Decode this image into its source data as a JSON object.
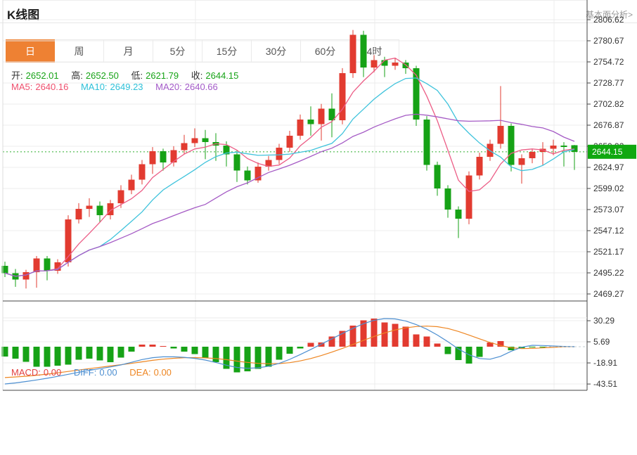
{
  "header": {
    "title": "K线图",
    "link": "基本面分析>"
  },
  "tabs": {
    "items": [
      "日",
      "周",
      "月",
      "5分",
      "15分",
      "30分",
      "60分",
      "4时"
    ],
    "selected_index": 0
  },
  "info": {
    "open_label": "开:",
    "open": "2652.01",
    "high_label": "高:",
    "high": "2652.50",
    "low_label": "低:",
    "low": "2621.79",
    "close_label": "收:",
    "close": "2644.15",
    "ma5_label": "MA5:",
    "ma5": "2640.16",
    "ma10_label": "MA10:",
    "ma10": "2649.23",
    "ma20_label": "MA20:",
    "ma20": "2640.66"
  },
  "macd_info": {
    "macd_label": "MACD:",
    "macd": "0.00",
    "diff_label": "DIFF:",
    "diff": "0.00",
    "dea_label": "DEA:",
    "dea": "0.00"
  },
  "colors": {
    "up": "#e23b30",
    "down": "#16a216",
    "ma5": "#ec5d86",
    "ma10": "#3fc3dc",
    "ma20": "#a55bc5",
    "diff_line": "#4d8fd1",
    "dea_line": "#ee8622",
    "ohlc_value": "#17a317",
    "ma5_text": "#ef506e",
    "ma10_text": "#2ec0d8",
    "ma20_text": "#a35ac8",
    "macd_text": "#e24040",
    "diff_text": "#4d8fd1",
    "dea_text": "#ee8622",
    "badge": "#10a810",
    "dotted_price_line": "#2daf2d",
    "grid": "#ececec",
    "border_dark": "#444444",
    "border_light": "#dddddd",
    "axis_text": "#333333",
    "tab_selected": "#ee8133"
  },
  "price_axis": {
    "labels": [
      "2806.62",
      "2780.67",
      "2754.72",
      "2728.77",
      "2702.82",
      "2676.87",
      "2650.92",
      "2624.97",
      "2599.02",
      "2573.07",
      "2547.12",
      "2521.17",
      "2495.22",
      "2469.27"
    ],
    "current": "2644.15"
  },
  "macd_axis": {
    "labels": [
      "30.29",
      "5.69",
      "-18.91",
      "-43.51"
    ]
  },
  "chart_data": {
    "type": "candlestick+macd",
    "title": "K线图",
    "ylabel": "price",
    "y_ticks": [
      2806.62,
      2780.67,
      2754.72,
      2728.77,
      2702.82,
      2676.87,
      2650.92,
      2624.97,
      2599.02,
      2573.07,
      2547.12,
      2521.17,
      2495.22,
      2469.27
    ],
    "ylim": [
      2469.27,
      2806.62
    ],
    "current_price": 2644.15,
    "last_candle": {
      "open": 2652.01,
      "high": 2652.5,
      "low": 2621.79,
      "close": 2644.15
    },
    "ma_periods": [
      5,
      10,
      20
    ],
    "ma_last_values": {
      "MA5": 2640.16,
      "MA10": 2649.23,
      "MA20": 2640.66
    },
    "candles_ohlc": [
      [
        2504,
        2509,
        2490,
        2495
      ],
      [
        2495,
        2500,
        2478,
        2487
      ],
      [
        2487,
        2499,
        2476,
        2496
      ],
      [
        2496,
        2516,
        2477,
        2513
      ],
      [
        2513,
        2516,
        2486,
        2498
      ],
      [
        2498,
        2512,
        2494,
        2508
      ],
      [
        2508,
        2566,
        2503,
        2561
      ],
      [
        2561,
        2581,
        2556,
        2574
      ],
      [
        2574,
        2587,
        2564,
        2578
      ],
      [
        2578,
        2583,
        2557,
        2566
      ],
      [
        2566,
        2585,
        2561,
        2581
      ],
      [
        2581,
        2603,
        2575,
        2597
      ],
      [
        2597,
        2616,
        2592,
        2610
      ],
      [
        2610,
        2634,
        2604,
        2629
      ],
      [
        2629,
        2650,
        2617,
        2645
      ],
      [
        2645,
        2648,
        2621,
        2631
      ],
      [
        2631,
        2651,
        2626,
        2646
      ],
      [
        2646,
        2665,
        2641,
        2655
      ],
      [
        2655,
        2673,
        2650,
        2661
      ],
      [
        2661,
        2671,
        2635,
        2656
      ],
      [
        2656,
        2667,
        2633,
        2652
      ],
      [
        2652,
        2657,
        2626,
        2641
      ],
      [
        2641,
        2646,
        2607,
        2621
      ],
      [
        2621,
        2626,
        2604,
        2609
      ],
      [
        2609,
        2631,
        2606,
        2626
      ],
      [
        2626,
        2639,
        2621,
        2634
      ],
      [
        2634,
        2654,
        2629,
        2649
      ],
      [
        2649,
        2670,
        2644,
        2664
      ],
      [
        2664,
        2690,
        2659,
        2684
      ],
      [
        2684,
        2700,
        2664,
        2678
      ],
      [
        2678,
        2703,
        2658,
        2697
      ],
      [
        2697,
        2716,
        2662,
        2683
      ],
      [
        2683,
        2747,
        2678,
        2741
      ],
      [
        2741,
        2794,
        2735,
        2788
      ],
      [
        2788,
        2793,
        2736,
        2748
      ],
      [
        2748,
        2763,
        2742,
        2757
      ],
      [
        2757,
        2761,
        2736,
        2750
      ],
      [
        2750,
        2759,
        2745,
        2754
      ],
      [
        2754,
        2757,
        2740,
        2747
      ],
      [
        2747,
        2750,
        2676,
        2684
      ],
      [
        2684,
        2688,
        2621,
        2628
      ],
      [
        2628,
        2632,
        2590,
        2599
      ],
      [
        2599,
        2603,
        2563,
        2573
      ],
      [
        2573,
        2577,
        2538,
        2562
      ],
      [
        2562,
        2620,
        2555,
        2615
      ],
      [
        2615,
        2643,
        2610,
        2638
      ],
      [
        2638,
        2659,
        2633,
        2654
      ],
      [
        2654,
        2725,
        2648,
        2676
      ],
      [
        2676,
        2679,
        2620,
        2628
      ],
      [
        2628,
        2641,
        2605,
        2636
      ],
      [
        2636,
        2648,
        2630,
        2644
      ],
      [
        2644,
        2656,
        2628,
        2648
      ],
      [
        2648,
        2659,
        2640,
        2652
      ],
      [
        2652,
        2656,
        2626,
        2650
      ],
      [
        2652.01,
        2652.5,
        2621.79,
        2644.15
      ]
    ],
    "macd": {
      "ticks": [
        30.29,
        5.69,
        -18.91,
        -43.51
      ],
      "last_values": {
        "macd": 0.0,
        "diff": 0.0,
        "dea": 0.0
      },
      "hist": [
        -11.5,
        -14,
        -17.5,
        -23.5,
        -23.5,
        -22.1,
        -20.8,
        -15.3,
        -14,
        -15.9,
        -18,
        -12.6,
        -5.7,
        2.5,
        2.5,
        1,
        -2.2,
        -5.7,
        -8.5,
        -12.6,
        -18,
        -26,
        -30,
        -28.7,
        -26,
        -23.2,
        -15,
        -8.2,
        -1.9,
        4.4,
        4.9,
        11.8,
        18.6,
        24.6,
        30.9,
        32.8,
        28.2,
        26.8,
        23.5,
        14.5,
        11.8,
        3.6,
        -8.7,
        -15.6,
        -19.7,
        -12,
        5,
        6.5,
        -4,
        -1.5,
        -0.5,
        -0.2,
        0,
        0,
        0
      ],
      "diff": [
        -43.5,
        -42.2,
        -40.6,
        -38.8,
        -36.8,
        -34.6,
        -32.2,
        -29.8,
        -27.6,
        -25.6,
        -23.6,
        -21.2,
        -18.2,
        -15,
        -12.8,
        -11.8,
        -11.8,
        -12.4,
        -13.6,
        -15.6,
        -18.4,
        -21.6,
        -24.2,
        -25.2,
        -24.6,
        -22.8,
        -19.4,
        -14.8,
        -9.2,
        -3.2,
        3,
        9.2,
        15.4,
        21.4,
        26.8,
        30.8,
        32.8,
        32.4,
        30,
        25.8,
        20.4,
        13.6,
        5.8,
        -2.6,
        -9.4,
        -13.8,
        -14.6,
        -11.2,
        -5.4,
        -0.6,
        1.6,
        1.4,
        0.8,
        0.3,
        0
      ],
      "dea": [
        -36,
        -35.3,
        -34.4,
        -33.3,
        -32,
        -30.5,
        -28.9,
        -27.2,
        -25.6,
        -24,
        -22.5,
        -21,
        -19.4,
        -17.6,
        -15.9,
        -14.5,
        -13.5,
        -12.9,
        -12.7,
        -13,
        -13.8,
        -15.1,
        -16.8,
        -18.3,
        -19.4,
        -19.9,
        -19.7,
        -18.6,
        -16.6,
        -13.8,
        -10.3,
        -6.3,
        -2,
        2.6,
        7.4,
        12,
        16.1,
        19.5,
        22,
        23.5,
        24,
        23.4,
        21.2,
        17.8,
        13.6,
        9.2,
        5,
        1.4,
        -1.2,
        -2.2,
        -2,
        -1.4,
        -0.7,
        -0.2,
        0
      ]
    }
  }
}
